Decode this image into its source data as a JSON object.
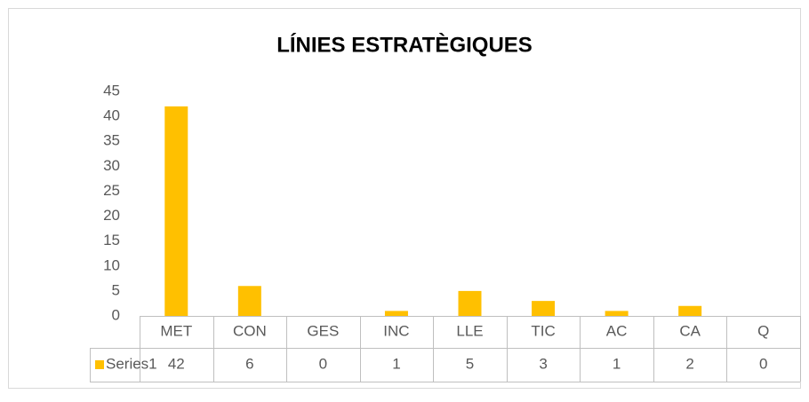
{
  "chart_data": {
    "type": "bar",
    "title": "LÍNIES ESTRATÈGIQUES",
    "categories": [
      "MET",
      "CON",
      "GES",
      "INC",
      "LLE",
      "TIC",
      "AC",
      "CA",
      "Q"
    ],
    "series": [
      {
        "name": "Series1",
        "color": "#ffc000",
        "values": [
          42,
          6,
          0,
          1,
          5,
          3,
          1,
          2,
          0
        ]
      }
    ],
    "ylim": [
      0,
      45
    ],
    "yticks": [
      0,
      5,
      10,
      15,
      20,
      25,
      30,
      35,
      40,
      45
    ],
    "grid": false
  }
}
